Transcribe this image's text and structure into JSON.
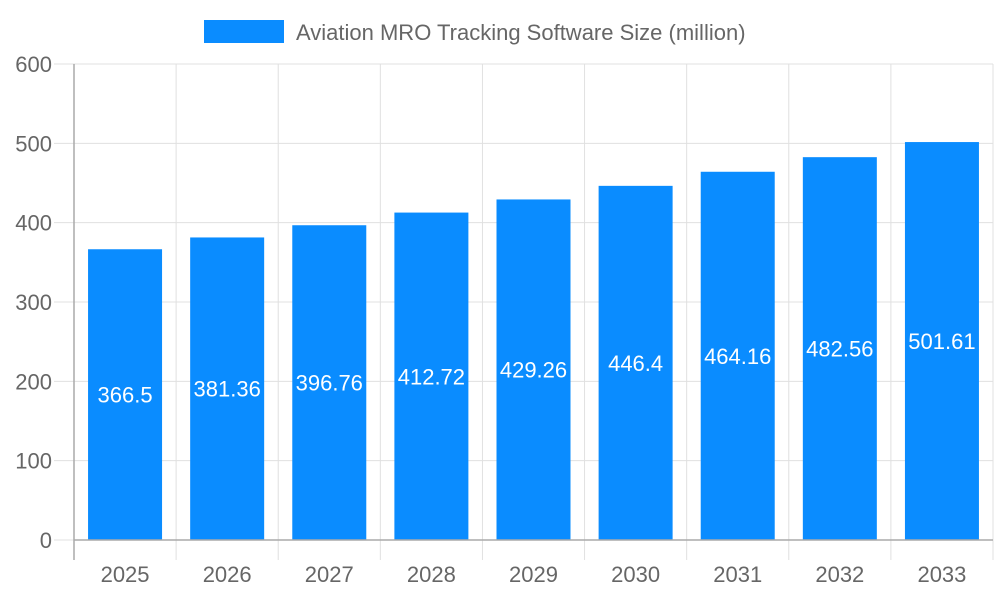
{
  "chart_data": {
    "type": "bar",
    "title": "",
    "legend": {
      "position": "top",
      "entries": [
        "Aviation MRO Tracking Software Size (million)"
      ]
    },
    "categories": [
      "2025",
      "2026",
      "2027",
      "2028",
      "2029",
      "2030",
      "2031",
      "2032",
      "2033"
    ],
    "series": [
      {
        "name": "Aviation MRO Tracking Software Size (million)",
        "values": [
          366.5,
          381.36,
          396.76,
          412.72,
          429.26,
          446.4,
          464.16,
          482.56,
          501.61
        ],
        "color": "#0a8cff"
      }
    ],
    "xlabel": "",
    "ylabel": "",
    "ylim": [
      0,
      600
    ],
    "yticks": [
      0,
      100,
      200,
      300,
      400,
      500,
      600
    ],
    "grid": true,
    "data_labels": true
  }
}
